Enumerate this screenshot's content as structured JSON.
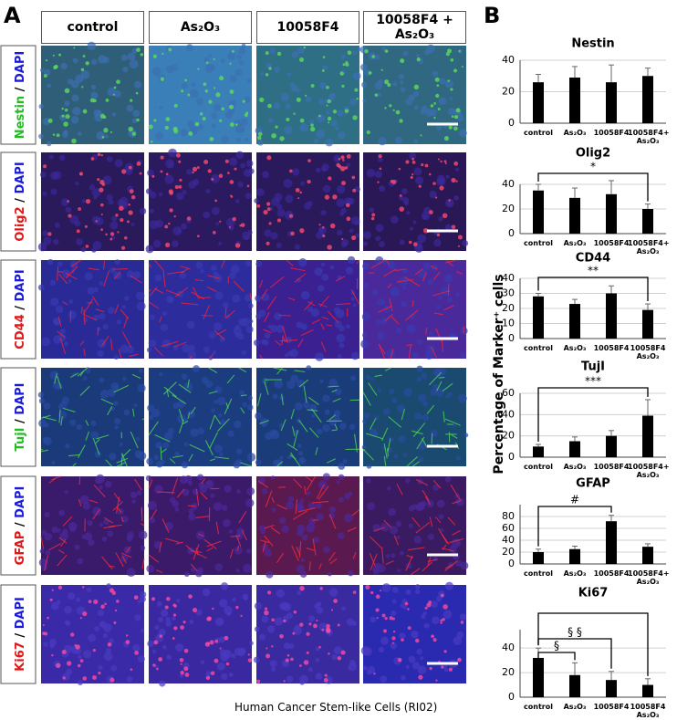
{
  "panel_a": {
    "label": "A",
    "columns": [
      "control",
      "As₂O₃",
      "10058F4",
      "10058F4 + As₂O₃"
    ],
    "rows": [
      {
        "marker": "Nestin",
        "marker_color": "#1fbf1f",
        "separator": "/",
        "counterstain": "DAPI"
      },
      {
        "marker": "Olig2",
        "marker_color": "#e01818",
        "separator": "/",
        "counterstain": "DAPI"
      },
      {
        "marker": "CD44",
        "marker_color": "#e01818",
        "separator": "/",
        "counterstain": "DAPI"
      },
      {
        "marker": "TujI",
        "marker_color": "#1fbf1f",
        "separator": "/",
        "counterstain": "DAPI"
      },
      {
        "marker": "GFAP",
        "marker_color": "#e01818",
        "separator": "/",
        "counterstain": "DAPI"
      },
      {
        "marker": "Ki67",
        "marker_color": "#e01818",
        "separator": "/",
        "counterstain": "DAPI"
      }
    ],
    "caption": "Human Cancer Stem-like Cells (RI02)"
  },
  "panel_b": {
    "label": "B",
    "y_axis_label": "Percentage of Marker⁺ cells"
  },
  "chart_data": [
    {
      "type": "bar",
      "title": "Nestin",
      "categories": [
        "control",
        "As₂O₃",
        "10058F4",
        "10058F4+ As₂O₃"
      ],
      "values": [
        26,
        29,
        26,
        30
      ],
      "errors": [
        5,
        7,
        11,
        5
      ],
      "color": "#000000",
      "ylim": [
        0,
        40
      ],
      "yticks": [
        0,
        20,
        40
      ],
      "grid": true
    },
    {
      "type": "bar",
      "title": "Olig2",
      "categories": [
        "control",
        "As₂O₃",
        "10058F4",
        "10058F4+ As₂O₃"
      ],
      "values": [
        35,
        29,
        32,
        20
      ],
      "errors": [
        5,
        8,
        11,
        4
      ],
      "color": "#000000",
      "ylim": [
        0,
        40
      ],
      "yticks": [
        0,
        20,
        40
      ],
      "grid": true,
      "brackets": [
        {
          "from": 0,
          "to": 3,
          "label": "*"
        }
      ]
    },
    {
      "type": "bar",
      "title": "CD44",
      "categories": [
        "control",
        "As₂O₃",
        "10058F4",
        "10058F4 As₂O₃"
      ],
      "values": [
        28,
        23,
        30,
        19
      ],
      "errors": [
        2,
        3,
        5,
        4
      ],
      "color": "#000000",
      "ylim": [
        0,
        40
      ],
      "yticks": [
        0,
        10,
        20,
        30,
        40
      ],
      "grid": true,
      "brackets": [
        {
          "from": 0,
          "to": 3,
          "label": "**"
        }
      ]
    },
    {
      "type": "bar",
      "title": "TujI",
      "categories": [
        "control",
        "As₂O₃",
        "10058F4",
        "10058F4+ As₂O₃"
      ],
      "values": [
        10,
        15,
        20,
        39
      ],
      "errors": [
        2,
        4,
        5,
        15
      ],
      "color": "#000000",
      "ylim": [
        0,
        60
      ],
      "yticks": [
        0,
        20,
        40,
        60
      ],
      "grid": true,
      "brackets": [
        {
          "from": 0,
          "to": 3,
          "label": "***"
        }
      ]
    },
    {
      "type": "bar",
      "title": "GFAP",
      "categories": [
        "control",
        "As₂O₃",
        "10058F4",
        "10058F4+ As₂O₃"
      ],
      "values": [
        20,
        25,
        72,
        29
      ],
      "errors": [
        5,
        5,
        10,
        5
      ],
      "color": "#000000",
      "ylim": [
        0,
        100
      ],
      "yticks": [
        0,
        20,
        40,
        60,
        80
      ],
      "grid": true,
      "brackets": [
        {
          "from": 0,
          "to": 2,
          "label": "#"
        }
      ]
    },
    {
      "type": "bar",
      "title": "Ki67",
      "categories": [
        "control",
        "As₂O₃",
        "10058F4",
        "10058F4 As₂O₃"
      ],
      "values": [
        32,
        18,
        14,
        10
      ],
      "errors": [
        8,
        10,
        7,
        5
      ],
      "color": "#000000",
      "ylim": [
        0,
        55
      ],
      "yticks": [
        0,
        20,
        40
      ],
      "grid": true,
      "brackets": [
        {
          "from": 0,
          "to": 3
        },
        {
          "from": 0,
          "to": 2,
          "label": "§ §"
        },
        {
          "from": 0,
          "to": 1,
          "label": "§"
        }
      ]
    }
  ]
}
